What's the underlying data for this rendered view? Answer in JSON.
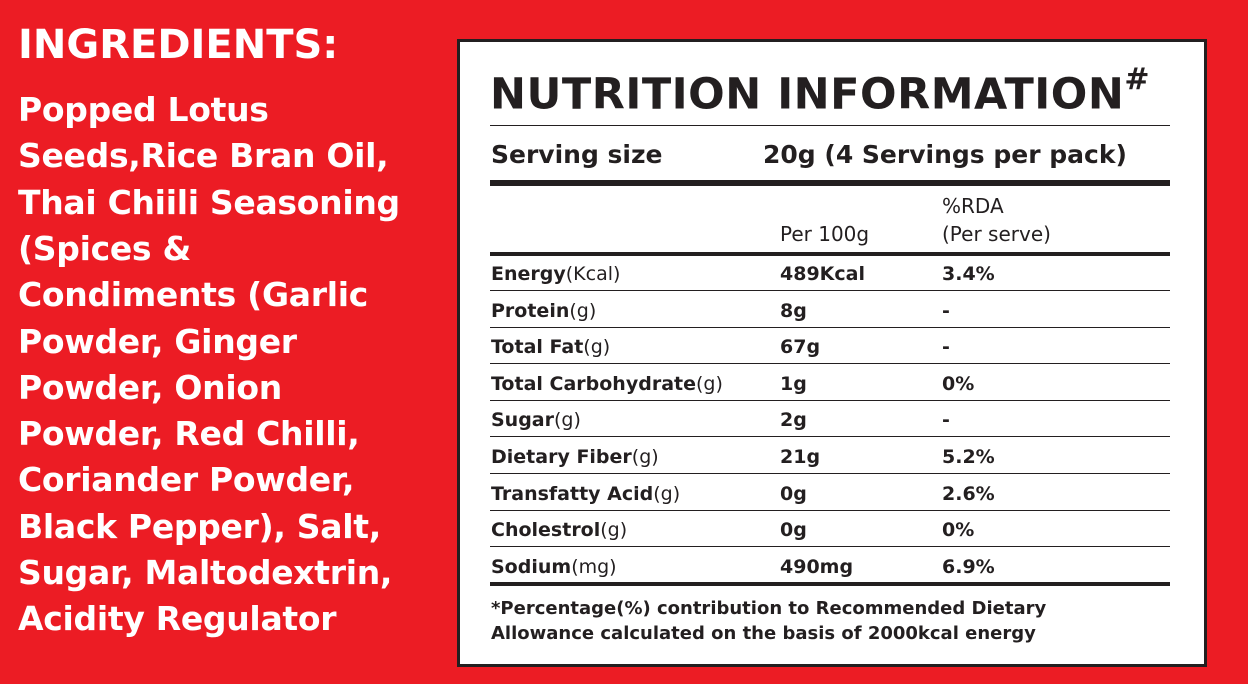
{
  "ingredients": {
    "title": "INGREDIENTS:",
    "lines": [
      "Popped Lotus",
      "Seeds,Rice Bran Oil,",
      "Thai Chiili Seasoning",
      "(Spices &",
      "Condiments (Garlic",
      "Powder, Ginger",
      "Powder, Onion",
      "Powder, Red Chilli,",
      "Coriander Powder,",
      "Black Pepper), Salt,",
      "Sugar, Maltodextrin,",
      "Acidity Regulator"
    ]
  },
  "nutrition": {
    "title": "NUTRITION INFORMATION",
    "title_mark": "#",
    "serving": {
      "label": "Serving size",
      "value": "20g (4 Servings per pack)"
    },
    "header": {
      "per100": "Per 100g",
      "rda": "%RDA",
      "rda_sub": "(Per serve)"
    },
    "rows": [
      {
        "name": "Energy",
        "unit": "(Kcal)",
        "per100": "489Kcal",
        "rda": "3.4%"
      },
      {
        "name": "Protein",
        "unit": "(g)",
        "per100": "8g",
        "rda": "-"
      },
      {
        "name": "Total Fat",
        "unit": "(g)",
        "per100": "67g",
        "rda": "-"
      },
      {
        "name": "Total Carbohydrate",
        "unit": "(g)",
        "per100": "1g",
        "rda": "0%"
      },
      {
        "name": "Sugar",
        "unit": "(g)",
        "per100": "2g",
        "rda": "-"
      },
      {
        "name": "Dietary Fiber",
        "unit": "(g)",
        "per100": "21g",
        "rda": "5.2%"
      },
      {
        "name": "Transfatty Acid",
        "unit": "(g)",
        "per100": "0g",
        "rda": "2.6%"
      },
      {
        "name": "Cholestrol",
        "unit": "(g)",
        "per100": "0g",
        "rda": "0%"
      },
      {
        "name": "Sodium",
        "unit": "(mg)",
        "per100": "490mg",
        "rda": "6.9%"
      }
    ],
    "footnote": [
      "*Percentage(%) contribution to Recommended Dietary",
      "Allowance calculated on the basis of 2000kcal energy"
    ]
  }
}
